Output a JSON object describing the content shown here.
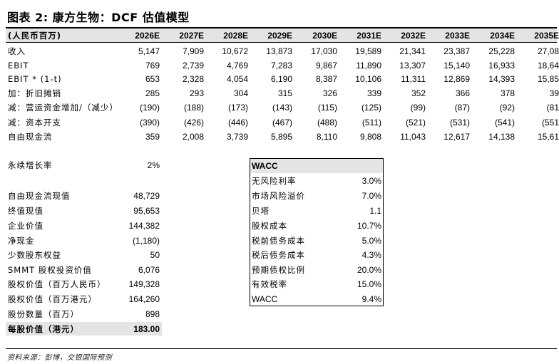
{
  "title": "图表 2: 康方生物：DCF 估值模型",
  "unit_label": "(人民币百万)",
  "years": [
    "2026E",
    "2027E",
    "2028E",
    "2029E",
    "2030E",
    "2031E",
    "2032E",
    "2033E",
    "2034E",
    "2035E"
  ],
  "rows": [
    {
      "label": "收入",
      "values": [
        "5,147",
        "7,909",
        "10,672",
        "13,873",
        "17,030",
        "19,589",
        "21,341",
        "23,387",
        "25,228",
        "27,08"
      ]
    },
    {
      "label": "EBIT",
      "values": [
        "769",
        "2,739",
        "4,769",
        "7,283",
        "9,867",
        "11,890",
        "13,307",
        "15,140",
        "16,933",
        "18,64"
      ]
    },
    {
      "label": "EBIT * (1-t)",
      "values": [
        "653",
        "2,328",
        "4,054",
        "6,190",
        "8,387",
        "10,106",
        "11,311",
        "12,869",
        "14,393",
        "15,85"
      ]
    },
    {
      "label": "加：折旧摊销",
      "values": [
        "285",
        "293",
        "304",
        "315",
        "326",
        "339",
        "352",
        "366",
        "378",
        "39"
      ]
    },
    {
      "label": "减：营运资金增加/（减少）",
      "values": [
        "(190)",
        "(188)",
        "(173)",
        "(143)",
        "(115)",
        "(125)",
        "(99)",
        "(87)",
        "(92)",
        "(81"
      ]
    },
    {
      "label": "减：资本开支",
      "values": [
        "(390)",
        "(426)",
        "(446)",
        "(467)",
        "(488)",
        "(511)",
        "(521)",
        "(531)",
        "(541)",
        "(551"
      ]
    },
    {
      "label": "自由现金流",
      "values": [
        "359",
        "2,008",
        "3,739",
        "5,895",
        "8,110",
        "9,808",
        "11,043",
        "12,617",
        "14,138",
        "15,61"
      ]
    }
  ],
  "growth": {
    "label": "永续增长率",
    "value": "2%"
  },
  "valuation": [
    {
      "label": "自由现金流现值",
      "value": "48,729"
    },
    {
      "label": "终值现值",
      "value": "95,653"
    },
    {
      "label": "企业价值",
      "value": "144,382"
    },
    {
      "label": "净现金",
      "value": "(1,180)"
    },
    {
      "label": "少数股东权益",
      "value": "50"
    },
    {
      "label": "SMMT 股权投资价值",
      "value": "6,076"
    },
    {
      "label": "股权价值（百万人民币）",
      "value": "149,328"
    },
    {
      "label": "股权价值（百万港元）",
      "value": "164,260"
    },
    {
      "label": "股份数量（百万）",
      "value": "898"
    }
  ],
  "per_share": {
    "label": "每股价值（港元）",
    "value": "183.00"
  },
  "wacc": {
    "header": "WACC",
    "rows": [
      {
        "label": "无风险利率",
        "value": "3.0%"
      },
      {
        "label": "市场风险溢价",
        "value": "7.0%"
      },
      {
        "label": "贝塔",
        "value": "1.1"
      },
      {
        "label": "股权成本",
        "value": "10.7%"
      },
      {
        "label": "税前债务成本",
        "value": "5.0%"
      },
      {
        "label": "税后债务成本",
        "value": "4.3%"
      },
      {
        "label": "预期债权比例",
        "value": "20.0%"
      },
      {
        "label": "有效税率",
        "value": "15.0%"
      },
      {
        "label": "WACC",
        "value": "9.4%"
      }
    ]
  },
  "source": "资料来源：彭博，交银国际预测"
}
